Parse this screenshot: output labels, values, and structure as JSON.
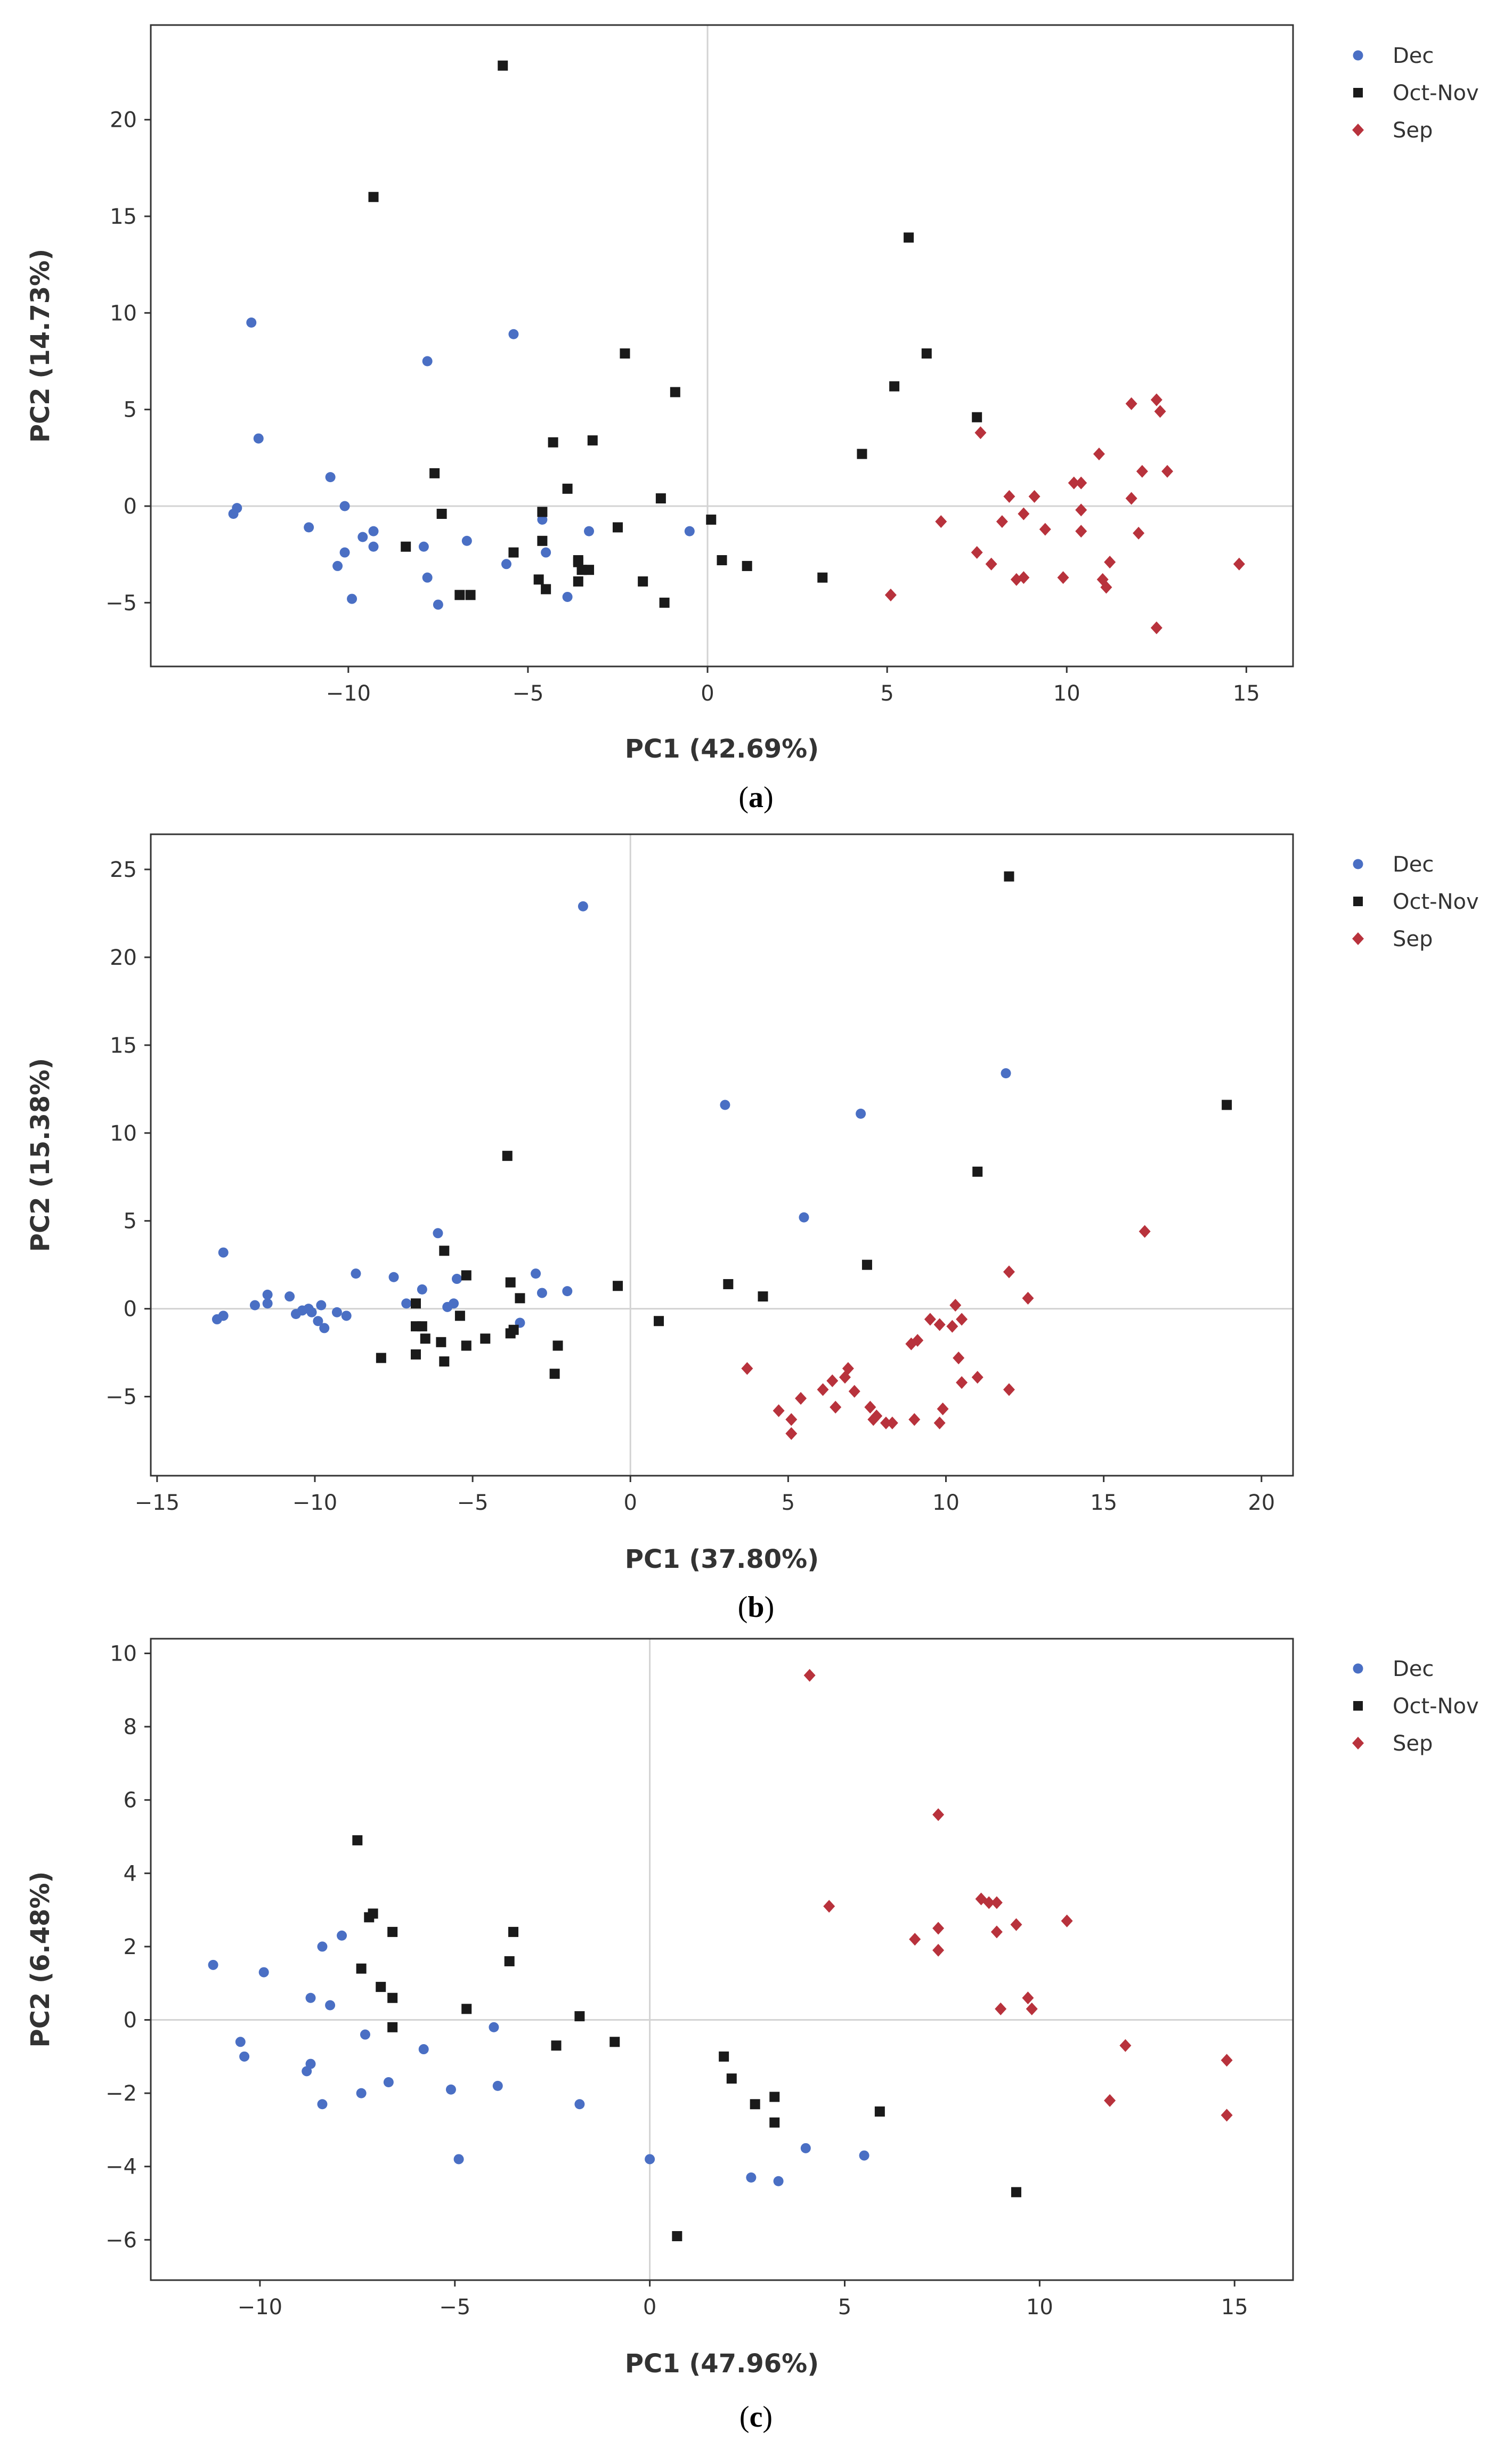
{
  "colors": {
    "dec": "#4a6fc4",
    "octnov": "#1a1a1a",
    "sep": "#b8323c",
    "frame": "#333333",
    "zero_line": "#d3d3d3"
  },
  "chart_data": [
    {
      "type": "scatter",
      "caption_letter": "a",
      "xlabel": "PC1 (42.69%)",
      "ylabel": "PC2 (14.73%)",
      "xlim": [
        -15.5,
        16.3
      ],
      "ylim": [
        -8.3,
        24.9
      ],
      "xticks": [
        -10,
        -5,
        0,
        5,
        10,
        15
      ],
      "yticks": [
        -5,
        0,
        5,
        10,
        15,
        20
      ],
      "grid": false,
      "legend_position": "outside-top-right",
      "series": [
        {
          "name": "Dec",
          "color_key": "dec",
          "marker": "circle",
          "points": [
            [
              -12.7,
              9.5
            ],
            [
              -12.5,
              3.5
            ],
            [
              -13.1,
              -0.1
            ],
            [
              -13.2,
              -0.4
            ],
            [
              -11.1,
              -1.1
            ],
            [
              -10.5,
              1.5
            ],
            [
              -10.1,
              0.0
            ],
            [
              -10.3,
              -3.1
            ],
            [
              -10.1,
              -2.4
            ],
            [
              -9.9,
              -4.8
            ],
            [
              -9.6,
              -1.6
            ],
            [
              -9.3,
              -2.1
            ],
            [
              -9.3,
              -1.3
            ],
            [
              -7.8,
              7.5
            ],
            [
              -7.9,
              -2.1
            ],
            [
              -7.8,
              -3.7
            ],
            [
              -7.5,
              -5.1
            ],
            [
              -6.7,
              -1.8
            ],
            [
              -5.4,
              8.9
            ],
            [
              -5.6,
              -3.0
            ],
            [
              -4.6,
              -0.7
            ],
            [
              -4.5,
              -2.4
            ],
            [
              -3.9,
              -4.7
            ],
            [
              -3.3,
              -1.3
            ],
            [
              -0.5,
              -1.3
            ]
          ]
        },
        {
          "name": "Oct-Nov",
          "color_key": "octnov",
          "marker": "square",
          "points": [
            [
              -5.7,
              22.8
            ],
            [
              -9.3,
              16.0
            ],
            [
              -8.4,
              -2.1
            ],
            [
              -7.6,
              1.7
            ],
            [
              -7.4,
              -0.4
            ],
            [
              -6.9,
              -4.6
            ],
            [
              -6.6,
              -4.6
            ],
            [
              -5.4,
              -2.4
            ],
            [
              -4.3,
              3.3
            ],
            [
              -3.9,
              0.9
            ],
            [
              -4.6,
              -0.3
            ],
            [
              -4.6,
              -1.8
            ],
            [
              -4.7,
              -3.8
            ],
            [
              -4.5,
              -4.3
            ],
            [
              -3.6,
              -2.9
            ],
            [
              -3.6,
              -2.8
            ],
            [
              -3.5,
              -3.3
            ],
            [
              -3.6,
              -3.9
            ],
            [
              -3.3,
              -3.3
            ],
            [
              -3.2,
              3.4
            ],
            [
              -2.5,
              -1.1
            ],
            [
              -2.3,
              7.9
            ],
            [
              -1.8,
              -3.9
            ],
            [
              -1.3,
              0.4
            ],
            [
              -1.2,
              -5.0
            ],
            [
              -0.9,
              5.9
            ],
            [
              0.1,
              -0.7
            ],
            [
              0.4,
              -2.8
            ],
            [
              1.1,
              -3.1
            ],
            [
              3.2,
              -3.7
            ],
            [
              4.3,
              2.7
            ],
            [
              5.2,
              6.2
            ],
            [
              5.6,
              13.9
            ],
            [
              6.1,
              7.9
            ],
            [
              7.5,
              4.6
            ]
          ]
        },
        {
          "name": "Sep",
          "color_key": "sep",
          "marker": "diamond",
          "points": [
            [
              5.1,
              -4.6
            ],
            [
              6.5,
              -0.8
            ],
            [
              7.6,
              3.8
            ],
            [
              7.5,
              -2.4
            ],
            [
              7.9,
              -3.0
            ],
            [
              8.2,
              -0.8
            ],
            [
              8.4,
              0.5
            ],
            [
              8.6,
              -3.8
            ],
            [
              8.8,
              -0.4
            ],
            [
              8.8,
              -3.7
            ],
            [
              9.1,
              0.5
            ],
            [
              9.4,
              -1.2
            ],
            [
              9.9,
              -3.7
            ],
            [
              10.2,
              1.2
            ],
            [
              10.4,
              -0.2
            ],
            [
              10.4,
              -1.3
            ],
            [
              10.4,
              1.2
            ],
            [
              10.9,
              2.7
            ],
            [
              11.0,
              -3.8
            ],
            [
              11.1,
              -4.2
            ],
            [
              11.2,
              -2.9
            ],
            [
              11.8,
              5.3
            ],
            [
              11.8,
              0.4
            ],
            [
              12.0,
              -1.4
            ],
            [
              12.1,
              1.8
            ],
            [
              12.5,
              5.5
            ],
            [
              12.6,
              4.9
            ],
            [
              12.8,
              1.8
            ],
            [
              12.5,
              -6.3
            ],
            [
              14.8,
              -3.0
            ]
          ]
        }
      ]
    },
    {
      "type": "scatter",
      "caption_letter": "b",
      "xlabel": "PC1 (37.80%)",
      "ylabel": "PC2 (15.38%)",
      "xlim": [
        -15.2,
        21.0
      ],
      "ylim": [
        -9.5,
        27.0
      ],
      "xticks": [
        -15,
        -10,
        -5,
        0,
        5,
        10,
        15,
        20
      ],
      "yticks": [
        -5,
        0,
        5,
        10,
        15,
        20,
        25
      ],
      "grid": false,
      "legend_position": "outside-top-right",
      "series": [
        {
          "name": "Dec",
          "color_key": "dec",
          "marker": "circle",
          "points": [
            [
              -1.5,
              22.9
            ],
            [
              3.0,
              11.6
            ],
            [
              7.3,
              11.1
            ],
            [
              11.9,
              13.4
            ],
            [
              5.5,
              5.2
            ],
            [
              -12.9,
              3.2
            ],
            [
              -12.9,
              -0.4
            ],
            [
              -13.1,
              -0.6
            ],
            [
              -11.9,
              0.2
            ],
            [
              -11.5,
              0.3
            ],
            [
              -11.5,
              0.8
            ],
            [
              -10.8,
              0.7
            ],
            [
              -10.6,
              -0.3
            ],
            [
              -10.4,
              -0.1
            ],
            [
              -10.2,
              0.0
            ],
            [
              -10.1,
              -0.2
            ],
            [
              -9.9,
              -0.7
            ],
            [
              -9.8,
              0.2
            ],
            [
              -9.7,
              -1.1
            ],
            [
              -9.3,
              -0.2
            ],
            [
              -9.0,
              -0.4
            ],
            [
              -8.7,
              2.0
            ],
            [
              -7.5,
              1.8
            ],
            [
              -7.1,
              0.3
            ],
            [
              -6.6,
              1.1
            ],
            [
              -6.1,
              4.3
            ],
            [
              -5.8,
              0.1
            ],
            [
              -5.6,
              0.3
            ],
            [
              -5.5,
              1.7
            ],
            [
              -3.0,
              2.0
            ],
            [
              -2.8,
              0.9
            ],
            [
              -3.5,
              -0.8
            ],
            [
              -2.0,
              1.0
            ]
          ]
        },
        {
          "name": "Oct-Nov",
          "color_key": "octnov",
          "marker": "square",
          "points": [
            [
              12.0,
              24.6
            ],
            [
              18.9,
              11.6
            ],
            [
              11.0,
              7.8
            ],
            [
              -3.9,
              8.7
            ],
            [
              7.5,
              2.5
            ],
            [
              -5.9,
              3.3
            ],
            [
              -6.8,
              0.3
            ],
            [
              -6.8,
              -1.0
            ],
            [
              -6.6,
              -1.0
            ],
            [
              -6.5,
              -1.7
            ],
            [
              -6.8,
              -2.6
            ],
            [
              -7.9,
              -2.8
            ],
            [
              -6.0,
              -1.9
            ],
            [
              -5.9,
              -3.0
            ],
            [
              -5.4,
              -0.4
            ],
            [
              -5.2,
              1.9
            ],
            [
              -5.2,
              -2.1
            ],
            [
              -4.6,
              -1.7
            ],
            [
              -3.8,
              1.5
            ],
            [
              -3.8,
              -1.4
            ],
            [
              -3.7,
              -1.2
            ],
            [
              -3.5,
              0.6
            ],
            [
              -2.3,
              -2.1
            ],
            [
              -2.4,
              -3.7
            ],
            [
              -0.4,
              1.3
            ],
            [
              0.9,
              -0.7
            ],
            [
              3.1,
              1.4
            ],
            [
              4.2,
              0.7
            ]
          ]
        },
        {
          "name": "Sep",
          "color_key": "sep",
          "marker": "diamond",
          "points": [
            [
              16.3,
              4.4
            ],
            [
              12.0,
              2.1
            ],
            [
              12.6,
              0.6
            ],
            [
              3.7,
              -3.4
            ],
            [
              4.7,
              -5.8
            ],
            [
              5.1,
              -6.3
            ],
            [
              5.1,
              -7.1
            ],
            [
              5.4,
              -5.1
            ],
            [
              6.1,
              -4.6
            ],
            [
              6.4,
              -4.1
            ],
            [
              6.5,
              -5.6
            ],
            [
              6.8,
              -3.9
            ],
            [
              6.9,
              -3.4
            ],
            [
              7.1,
              -4.7
            ],
            [
              7.6,
              -5.6
            ],
            [
              7.7,
              -6.3
            ],
            [
              7.8,
              -6.1
            ],
            [
              8.1,
              -6.5
            ],
            [
              8.3,
              -6.5
            ],
            [
              9.0,
              -6.3
            ],
            [
              8.9,
              -2.0
            ],
            [
              9.1,
              -1.8
            ],
            [
              9.5,
              -0.6
            ],
            [
              9.8,
              -0.9
            ],
            [
              9.8,
              -6.5
            ],
            [
              9.9,
              -5.7
            ],
            [
              10.3,
              0.2
            ],
            [
              10.2,
              -1.0
            ],
            [
              10.5,
              -0.6
            ],
            [
              10.4,
              -2.8
            ],
            [
              10.5,
              -4.2
            ],
            [
              11.0,
              -3.9
            ],
            [
              12.0,
              -4.6
            ]
          ]
        }
      ]
    },
    {
      "type": "scatter",
      "caption_letter": "c",
      "xlabel": "PC1 (47.96%)",
      "ylabel": "PC2 (6.48%)",
      "xlim": [
        -12.8,
        16.5
      ],
      "ylim": [
        -7.1,
        10.4
      ],
      "xticks": [
        -10,
        -5,
        0,
        5,
        10,
        15
      ],
      "yticks": [
        -6,
        -4,
        -2,
        0,
        2,
        4,
        6,
        8,
        10
      ],
      "grid": false,
      "legend_position": "outside-top-right",
      "series": [
        {
          "name": "Dec",
          "color_key": "dec",
          "marker": "circle",
          "points": [
            [
              -11.2,
              1.5
            ],
            [
              -10.5,
              -0.6
            ],
            [
              -10.4,
              -1.0
            ],
            [
              -9.9,
              1.3
            ],
            [
              -8.7,
              0.6
            ],
            [
              -8.7,
              -1.2
            ],
            [
              -8.8,
              -1.4
            ],
            [
              -8.4,
              2.0
            ],
            [
              -8.4,
              -2.3
            ],
            [
              -8.2,
              0.4
            ],
            [
              -7.9,
              2.3
            ],
            [
              -7.4,
              -2.0
            ],
            [
              -7.3,
              -0.4
            ],
            [
              -6.7,
              -1.7
            ],
            [
              -5.8,
              -0.8
            ],
            [
              -5.1,
              -1.9
            ],
            [
              -4.9,
              -3.8
            ],
            [
              -4.0,
              -0.2
            ],
            [
              -3.9,
              -1.8
            ],
            [
              -1.8,
              -2.3
            ],
            [
              0.0,
              -3.8
            ],
            [
              2.6,
              -4.3
            ],
            [
              3.3,
              -4.4
            ],
            [
              4.0,
              -3.5
            ],
            [
              5.5,
              -3.7
            ]
          ]
        },
        {
          "name": "Oct-Nov",
          "color_key": "octnov",
          "marker": "square",
          "points": [
            [
              -7.5,
              4.9
            ],
            [
              -7.2,
              2.8
            ],
            [
              -7.1,
              2.9
            ],
            [
              -7.4,
              1.4
            ],
            [
              -6.9,
              0.9
            ],
            [
              -6.6,
              2.4
            ],
            [
              -6.6,
              0.6
            ],
            [
              -6.6,
              -0.2
            ],
            [
              -4.7,
              0.3
            ],
            [
              -3.5,
              2.4
            ],
            [
              -3.6,
              1.6
            ],
            [
              -2.4,
              -0.7
            ],
            [
              -1.8,
              0.1
            ],
            [
              -0.9,
              -0.6
            ],
            [
              0.7,
              -5.9
            ],
            [
              1.9,
              -1.0
            ],
            [
              2.1,
              -1.6
            ],
            [
              2.7,
              -2.3
            ],
            [
              3.2,
              -2.1
            ],
            [
              3.2,
              -2.8
            ],
            [
              5.9,
              -2.5
            ],
            [
              9.4,
              -4.7
            ]
          ]
        },
        {
          "name": "Sep",
          "color_key": "sep",
          "marker": "diamond",
          "points": [
            [
              4.1,
              9.4
            ],
            [
              4.6,
              3.1
            ],
            [
              6.8,
              2.2
            ],
            [
              7.4,
              5.6
            ],
            [
              7.4,
              2.5
            ],
            [
              7.4,
              1.9
            ],
            [
              8.5,
              3.3
            ],
            [
              8.7,
              3.2
            ],
            [
              8.9,
              3.2
            ],
            [
              8.9,
              2.4
            ],
            [
              9.0,
              0.3
            ],
            [
              9.4,
              2.6
            ],
            [
              9.7,
              0.6
            ],
            [
              9.8,
              0.3
            ],
            [
              10.7,
              2.7
            ],
            [
              11.8,
              -2.2
            ],
            [
              12.2,
              -0.7
            ],
            [
              14.8,
              -1.1
            ],
            [
              14.8,
              -2.6
            ]
          ]
        }
      ]
    }
  ]
}
